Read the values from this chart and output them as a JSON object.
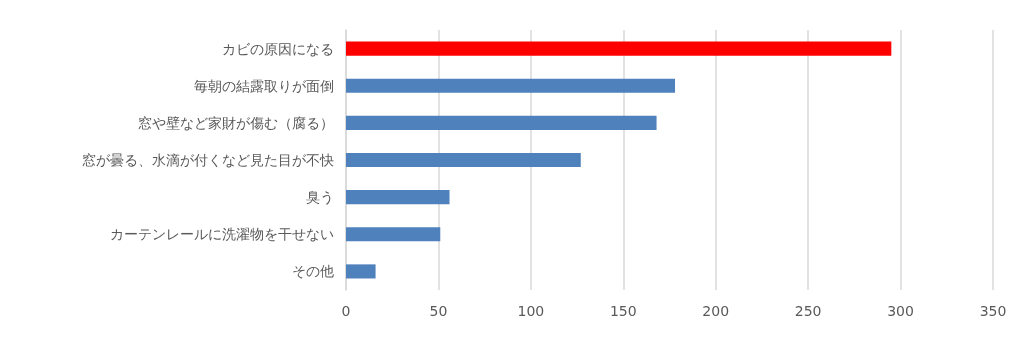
{
  "chart_data": {
    "type": "bar",
    "orientation": "horizontal",
    "categories": [
      "カビの原因になる",
      "毎朝の結露取りが面倒",
      "窓や壁など家財が傷む（腐る）",
      "窓が曇る、水滴が付くなど見た目が不快",
      "臭う",
      "カーテンレールに洗濯物を干せない",
      "その他"
    ],
    "values": [
      295,
      178,
      168,
      127,
      56,
      51,
      16
    ],
    "colors": [
      "#ff0000",
      "#4f81bd",
      "#4f81bd",
      "#4f81bd",
      "#4f81bd",
      "#4f81bd",
      "#4f81bd"
    ],
    "xlim": [
      0,
      350
    ],
    "xticks": [
      0,
      50,
      100,
      150,
      200,
      250,
      300,
      350
    ],
    "grid": "x"
  }
}
